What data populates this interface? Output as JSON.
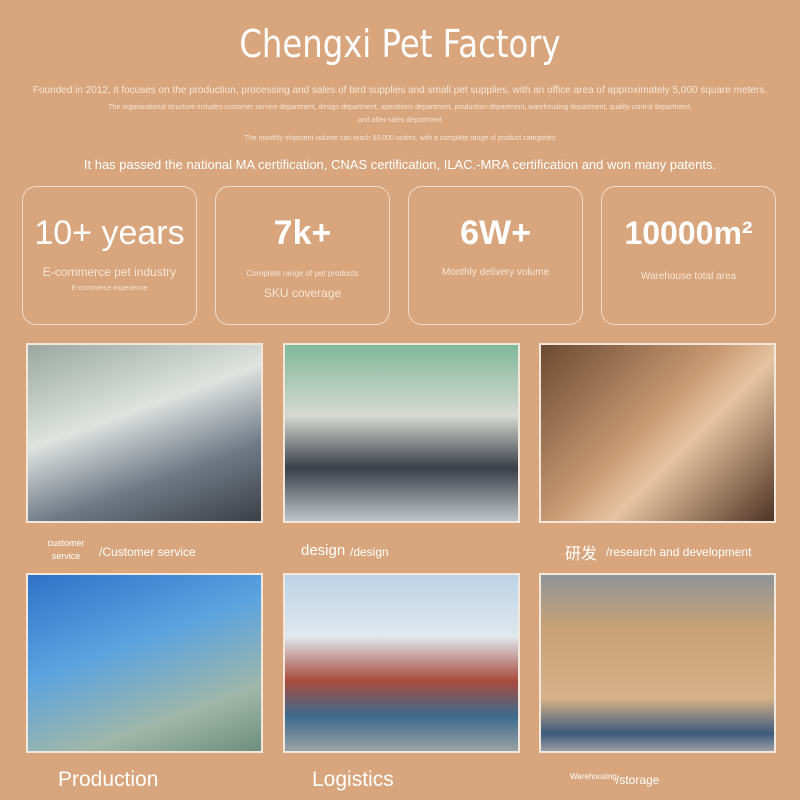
{
  "header": {
    "title": "Chengxi Pet Factory",
    "lines": [
      "Founded in 2012, it focuses on the production, processing and sales of bird supplies and small pet supplies, with an office area of approximately 5,000 square meters.",
      "The organizational structure includes customer service department, design department, operations department, production department, warehousing department, quality control department,",
      "and after-sales department",
      "The monthly shipment volume can reach 60,000 orders, with a complete range of product categories",
      "It has passed the national MA certification, CNAS certification, ILAC.-MRA certification and won many patents."
    ]
  },
  "stats": [
    {
      "value": "10+ years",
      "line1": "E-commerce pet industry",
      "line2": "E-commerce experience"
    },
    {
      "value": "7k+",
      "line1": "Complete range of pet products",
      "line2": "SKU coverage"
    },
    {
      "value": "6W+",
      "line1": "Monthly delivery volume",
      "line2": ""
    },
    {
      "value": "10000m²",
      "line1": "Warehouse total area",
      "line2": ""
    }
  ],
  "gallery": [
    {
      "cap_a": "customer service",
      "cap_b": "/Customer service"
    },
    {
      "cap_a": "design",
      "cap_b": "/design"
    },
    {
      "cap_a": "研发",
      "cap_b": "/research and development"
    },
    {
      "cap_a": "Production",
      "cap_b": ""
    },
    {
      "cap_a": "Logistics",
      "cap_b": ""
    },
    {
      "cap_a": "Warehousing",
      "cap_b": "/storage"
    }
  ]
}
